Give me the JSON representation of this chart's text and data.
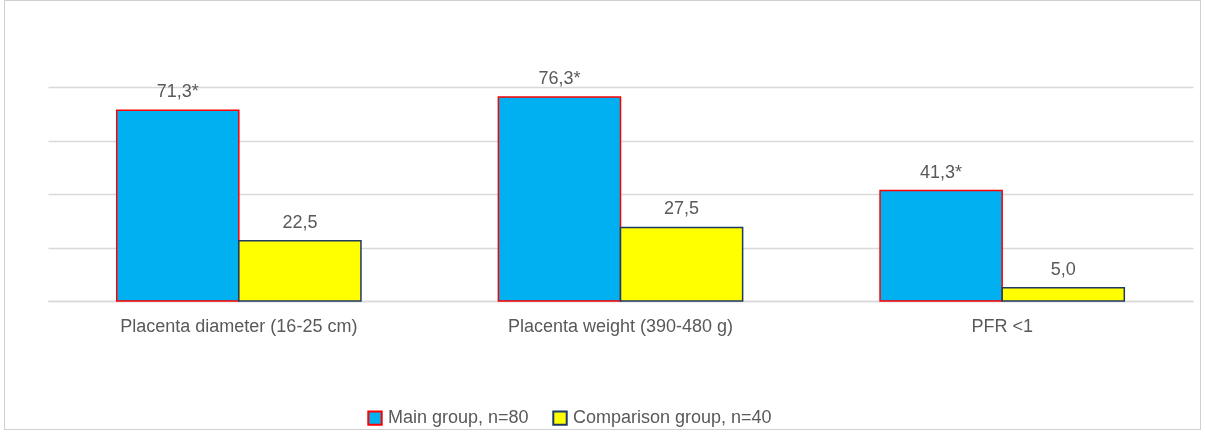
{
  "chart_data": {
    "type": "bar",
    "categories": [
      "Placenta diameter (16-25 cm)",
      "Placenta weight (390-480 g)",
      "PFR <1"
    ],
    "series": [
      {
        "name": "Main group, n=80",
        "color": "#00b0f0",
        "values": [
          71.3,
          76.3,
          41.3
        ],
        "value_labels": [
          "71,3*",
          "76,3*",
          "41,3*"
        ]
      },
      {
        "name": "Comparison group, n=40",
        "color": "#ffff00",
        "values": [
          22.5,
          27.5,
          5.0
        ],
        "value_labels": [
          "22,5",
          "27,5",
          "5,0"
        ]
      }
    ],
    "ylim": [
      0,
      80
    ],
    "yticks": [
      {
        "value": 0,
        "label": null
      },
      {
        "value": 20,
        "label": null
      },
      {
        "value": 40,
        "label": null
      },
      {
        "value": 60,
        "label": null
      },
      {
        "value": 80,
        "label": null
      }
    ],
    "grid": "y",
    "legend": "bottom",
    "tick_labels": "x"
  }
}
